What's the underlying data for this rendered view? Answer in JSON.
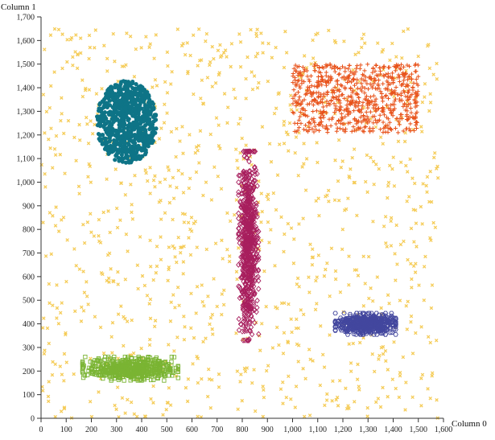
{
  "chart_data": {
    "type": "scatter",
    "xlabel": "Column 0",
    "ylabel": "Column 1",
    "xlim": [
      0,
      1600
    ],
    "ylim": [
      0,
      1700
    ],
    "x_ticks": [
      0,
      100,
      200,
      300,
      400,
      500,
      600,
      700,
      800,
      900,
      1000,
      1100,
      1200,
      1300,
      1400,
      1500,
      1600
    ],
    "y_ticks": [
      0,
      100,
      200,
      300,
      400,
      500,
      600,
      700,
      800,
      900,
      1000,
      1100,
      1200,
      1300,
      1400,
      1500,
      1600,
      1700
    ],
    "x_tick_labels": [
      "0",
      "100",
      "200",
      "300",
      "400",
      "500",
      "600",
      "700",
      "800",
      "900",
      "1,000",
      "1,100",
      "1,200",
      "1,300",
      "1,400",
      "1,500",
      "1,600"
    ],
    "y_tick_labels": [
      "0",
      "100",
      "200",
      "300",
      "400",
      "500",
      "600",
      "700",
      "800",
      "900",
      "1,000",
      "1,100",
      "1,200",
      "1,300",
      "1,400",
      "1,500",
      "1,600",
      "1,700"
    ],
    "grid": false,
    "series": [
      {
        "marker": "circle",
        "color": "#0e7487",
        "distribution": "disc",
        "center": [
          340,
          1255
        ],
        "extent": [
          120,
          175
        ],
        "count": 700
      },
      {
        "marker": "plus",
        "color": "#e8521a",
        "distribution": "uniform-rect",
        "x_range": [
          1000,
          1500
        ],
        "y_range": [
          1210,
          1500
        ],
        "count": 700
      },
      {
        "marker": "diamond",
        "color": "#a81f5e",
        "distribution": "ellipse",
        "center": [
          825,
          730
        ],
        "extent": [
          40,
          400
        ],
        "count": 700
      },
      {
        "marker": "hexagon",
        "color": "#43479e",
        "distribution": "ellipse",
        "center": [
          1290,
          400
        ],
        "extent": [
          120,
          45
        ],
        "count": 600
      },
      {
        "marker": "square",
        "color": "#7ab433",
        "distribution": "ellipse",
        "center": [
          355,
          210
        ],
        "extent": [
          190,
          50
        ],
        "count": 600
      },
      {
        "marker": "x",
        "color": "#f5cc58",
        "distribution": "uniform-noise",
        "x_range": [
          0,
          1580
        ],
        "y_range": [
          0,
          1650
        ],
        "count": 1000
      }
    ]
  }
}
